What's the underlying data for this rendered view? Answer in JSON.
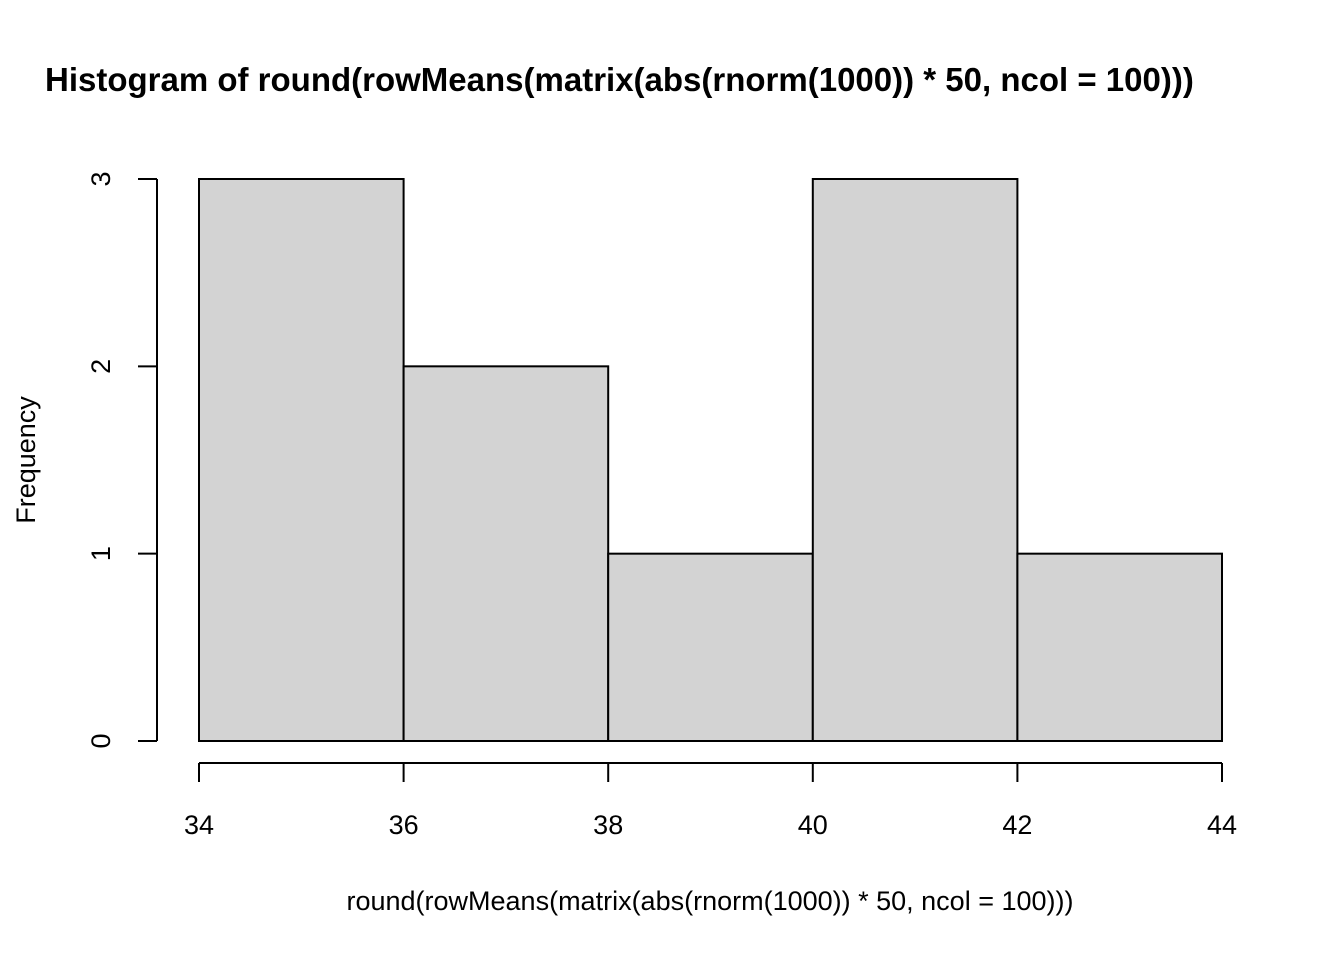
{
  "chart_data": {
    "type": "bar",
    "title": "Histogram of round(rowMeans(matrix(abs(rnorm(1000)) * 50, ncol = 100)))",
    "xlabel": "round(rowMeans(matrix(abs(rnorm(1000)) * 50, ncol = 100)))",
    "ylabel": "Frequency",
    "bins": [
      {
        "from": 34,
        "to": 36,
        "count": 3
      },
      {
        "from": 36,
        "to": 38,
        "count": 2
      },
      {
        "from": 38,
        "to": 40,
        "count": 1
      },
      {
        "from": 40,
        "to": 42,
        "count": 3
      },
      {
        "from": 42,
        "to": 44,
        "count": 1
      }
    ],
    "xlim": [
      34,
      44
    ],
    "ylim": [
      0,
      3
    ],
    "x_ticks": [
      "34",
      "36",
      "38",
      "40",
      "42",
      "44"
    ],
    "y_ticks": [
      "0",
      "1",
      "2",
      "3"
    ],
    "bar_color": "#d3d3d3",
    "edge_color": "#000000",
    "grid": false
  }
}
